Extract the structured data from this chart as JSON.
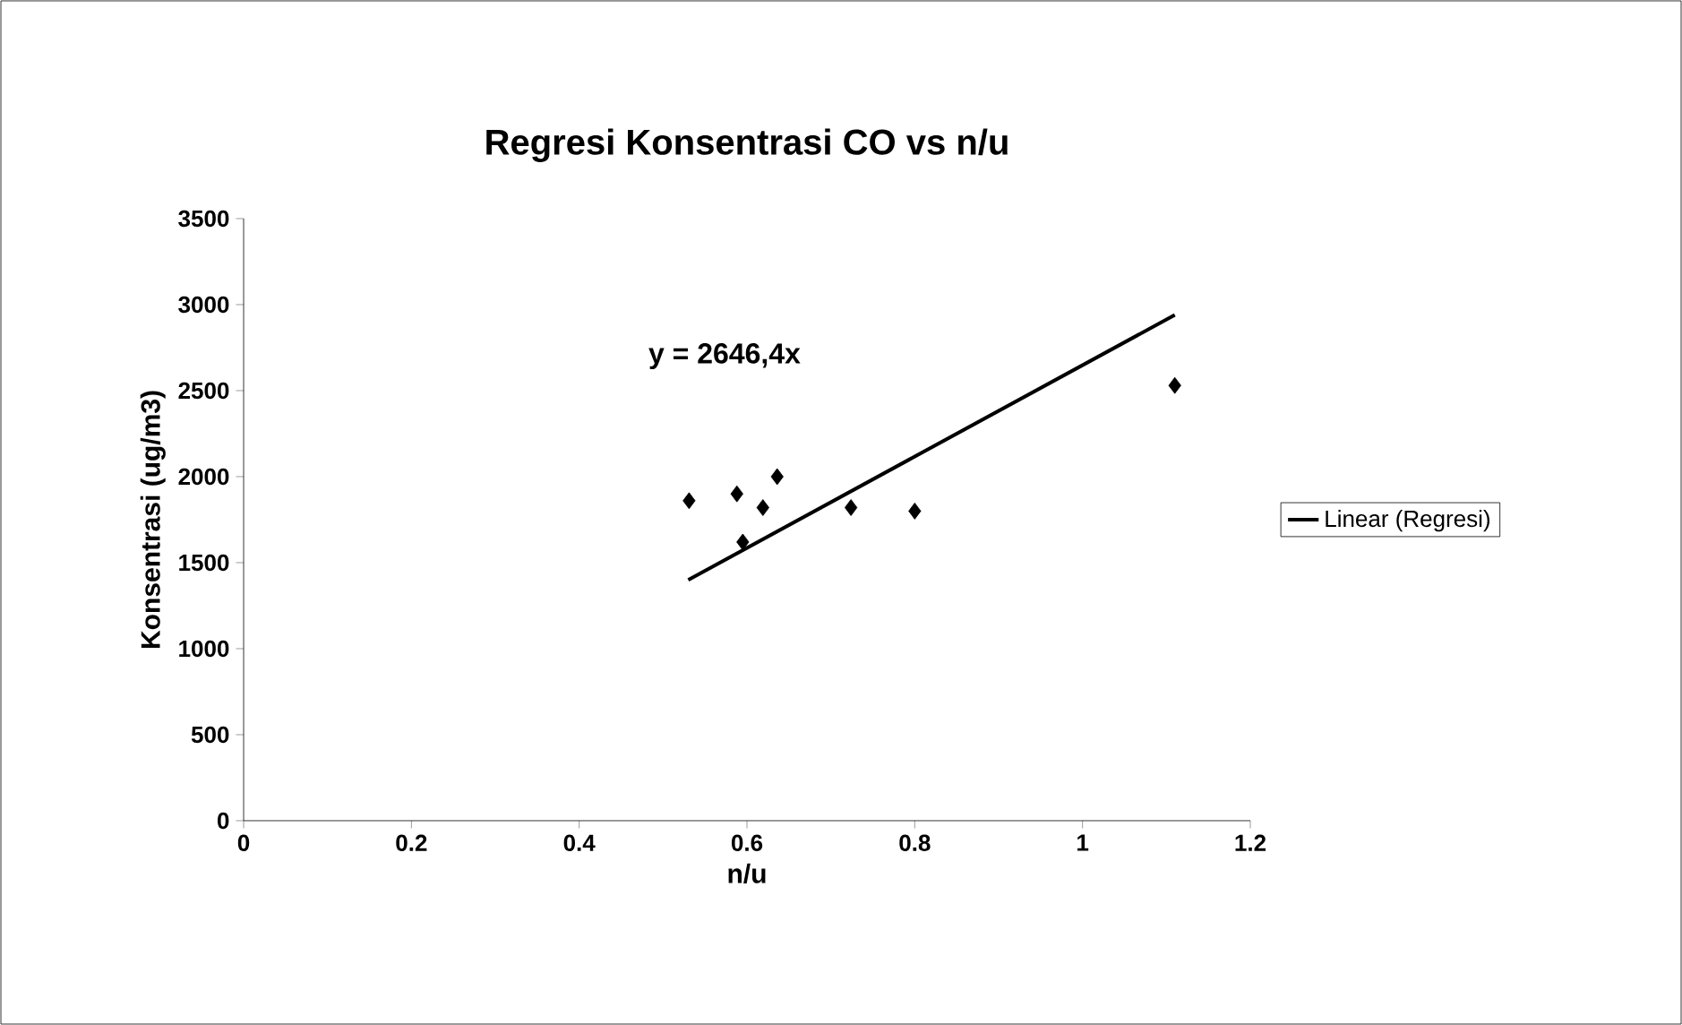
{
  "chart_data": {
    "type": "scatter",
    "title": "Regresi Konsentrasi CO vs n/u",
    "xlabel": "n/u",
    "ylabel": "Konsentrasi (ug/m3)",
    "annotations": [
      "y = 2646,4x"
    ],
    "xlim": [
      0,
      1.2
    ],
    "xticks": [
      0,
      0.2,
      0.4,
      0.6,
      0.8,
      1,
      1.2
    ],
    "ylim": [
      0,
      3500
    ],
    "yticks": [
      0,
      500,
      1000,
      1500,
      2000,
      2500,
      3000,
      3500
    ],
    "grid": false,
    "legend": "right",
    "series": [
      {
        "marker": "diamond",
        "color": "#000000",
        "x": [
          0.531,
          0.588,
          0.595,
          0.619,
          0.636,
          0.724,
          0.8,
          1.11
        ],
        "values": [
          1860,
          1900,
          1620,
          1820,
          2000,
          1820,
          1800,
          2530
        ]
      },
      {
        "type": "line",
        "marker": "none",
        "name": "Linear (Regresi)",
        "color": "#000000",
        "line_style": "solid",
        "x": [
          0.53,
          1.11
        ],
        "values": [
          1400,
          2940
        ]
      }
    ]
  }
}
